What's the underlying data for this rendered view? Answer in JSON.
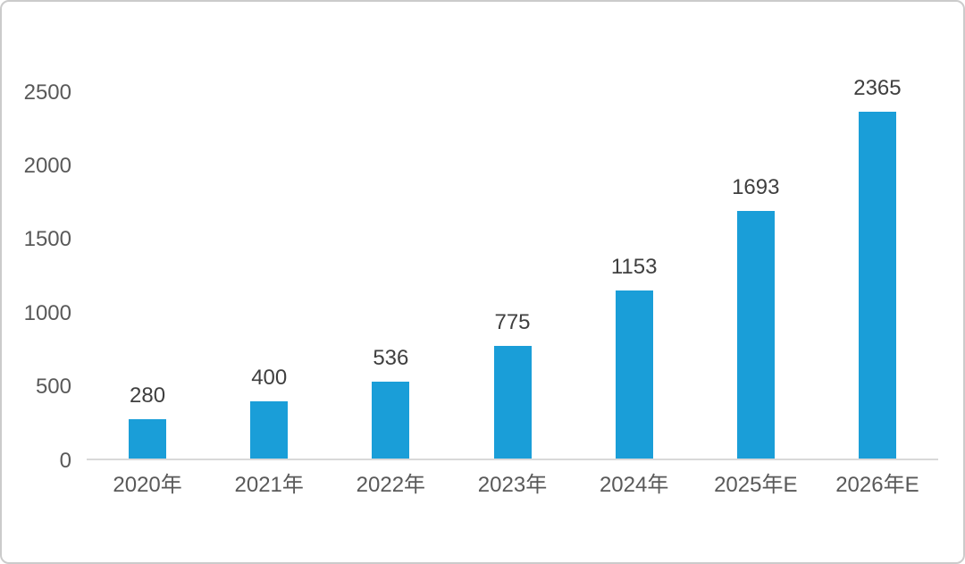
{
  "chart": {
    "bar_color": "#1a9ed8",
    "axis_line_color": "#d9d9d9",
    "tick_label_color": "#595959",
    "value_label_color": "#3f3f3f",
    "border_color": "#cbcbcb",
    "background_color": "#ffffff"
  },
  "chart_data": {
    "type": "bar",
    "categories": [
      "2020年",
      "2021年",
      "2022年",
      "2023年",
      "2024年",
      "2025年E",
      "2026年E"
    ],
    "values": [
      280,
      400,
      536,
      775,
      1153,
      1693,
      2365
    ],
    "title": "",
    "xlabel": "",
    "ylabel": "",
    "ylim": [
      0,
      2500
    ],
    "yticks": [
      0,
      500,
      1000,
      1500,
      2000,
      2500
    ],
    "grid": false,
    "legend": false,
    "value_labels_shown": true
  }
}
